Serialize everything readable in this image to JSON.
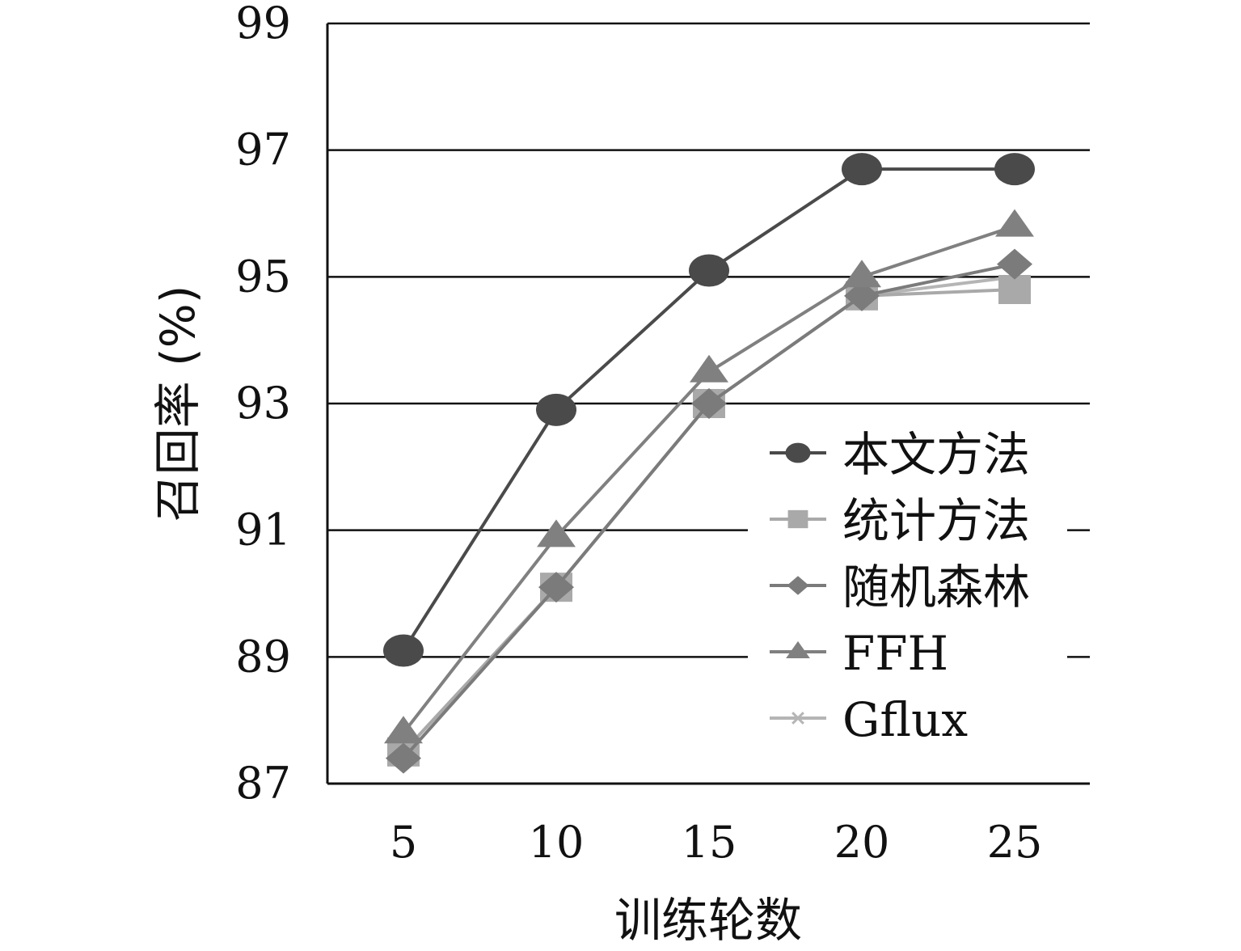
{
  "chart_data": {
    "type": "line",
    "title": "",
    "xlabel": "训练轮数",
    "ylabel": "召回率 (%)",
    "x": [
      5,
      10,
      15,
      20,
      25
    ],
    "x_tick_labels": [
      "5",
      "10",
      "15",
      "20",
      "25"
    ],
    "ylim": [
      87,
      99
    ],
    "y_ticks": [
      87,
      89,
      91,
      93,
      95,
      97,
      99
    ],
    "y_tick_labels": [
      "87",
      "89",
      "91",
      "93",
      "95",
      "97",
      "99"
    ],
    "grid": "horizontal",
    "legend_position": "right",
    "series": [
      {
        "name": "本文方法",
        "marker": "circle",
        "color": "#4a4a4a",
        "values": [
          89.1,
          92.9,
          95.1,
          96.7,
          96.7
        ]
      },
      {
        "name": "统计方法",
        "marker": "square",
        "color": "#a9a9a9",
        "values": [
          87.5,
          90.1,
          93.0,
          94.7,
          94.8
        ]
      },
      {
        "name": "随机森林",
        "marker": "diamond",
        "color": "#7b7b7b",
        "values": [
          87.4,
          90.1,
          93.0,
          94.7,
          95.2
        ]
      },
      {
        "name": "FFH",
        "marker": "triangle",
        "color": "#808080",
        "values": [
          87.8,
          90.9,
          93.5,
          95.0,
          95.8
        ]
      },
      {
        "name": "Gflux",
        "marker": "x",
        "color": "#b5b5b5",
        "values": [
          87.5,
          90.1,
          93.0,
          94.7,
          95.0
        ]
      }
    ]
  }
}
